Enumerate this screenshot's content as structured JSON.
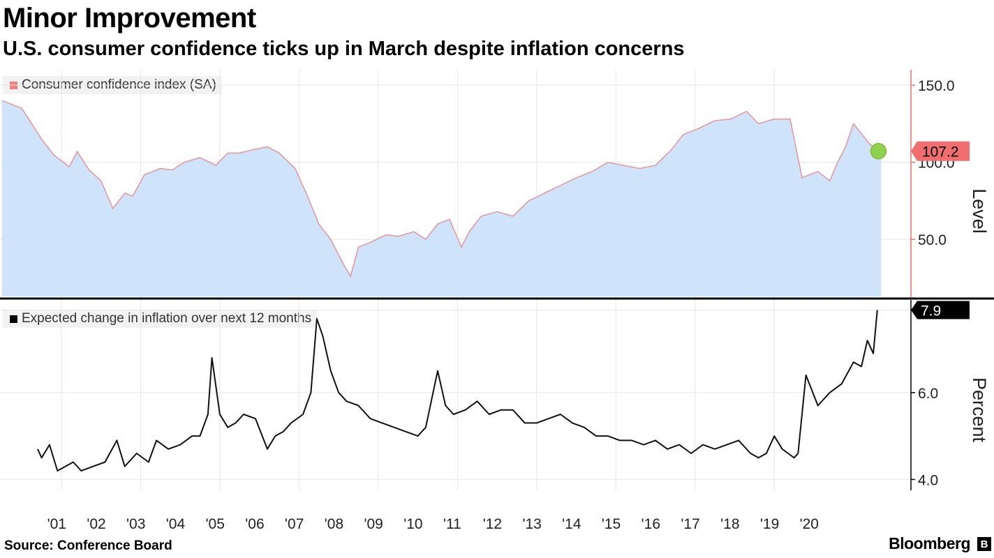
{
  "header": {
    "title": "Minor Improvement",
    "subtitle": "U.S. consumer confidence ticks up in March despite inflation concerns"
  },
  "footer": {
    "source": "Source: Conference Board",
    "brand": "Bloomberg",
    "brand_mark": "B"
  },
  "colors": {
    "area_fill": "#cfe4fb",
    "area_line": "#e39aa0",
    "latest_marker": "#8fd14f",
    "callout_top": "#f26d6d",
    "inflation_line": "#111111",
    "grid": "#e6e6e6",
    "divider": "#000000",
    "axis_accent": "#f26d6d"
  },
  "chart_data": [
    {
      "type": "area",
      "legend": "Consumer confidence index (SA)",
      "ylabel": "Level",
      "ylim": [
        13,
        160
      ],
      "yticks": [
        50.0,
        100.0,
        150.0
      ],
      "ytick_labels": [
        "50.0",
        "100.0",
        "150.0"
      ],
      "latest_value": 107.2,
      "latest_label": "107.2",
      "x": [
        2000.0,
        2000.5,
        2001.0,
        2001.3,
        2001.7,
        2001.9,
        2002.2,
        2002.5,
        2002.8,
        2003.1,
        2003.3,
        2003.6,
        2004.0,
        2004.3,
        2004.6,
        2005.0,
        2005.4,
        2005.7,
        2006.0,
        2006.3,
        2006.7,
        2007.0,
        2007.4,
        2007.7,
        2008.0,
        2008.3,
        2008.6,
        2008.8,
        2009.0,
        2009.3,
        2009.7,
        2010.0,
        2010.4,
        2010.7,
        2011.0,
        2011.3,
        2011.6,
        2011.8,
        2012.1,
        2012.5,
        2012.9,
        2013.3,
        2013.7,
        2014.1,
        2014.5,
        2014.9,
        2015.3,
        2015.7,
        2016.1,
        2016.5,
        2016.9,
        2017.2,
        2017.6,
        2018.0,
        2018.4,
        2018.8,
        2019.1,
        2019.5,
        2019.9,
        2020.2,
        2020.4,
        2020.6,
        2020.9,
        2021.1,
        2021.3,
        2021.5,
        2021.9,
        2022.2
      ],
      "values": [
        140,
        135,
        115,
        105,
        97,
        107,
        95,
        88,
        70,
        80,
        78,
        92,
        96,
        95,
        100,
        103,
        98,
        106,
        106,
        108,
        110,
        106,
        96,
        79,
        60,
        50,
        35,
        26,
        45,
        48,
        53,
        52,
        55,
        50,
        60,
        63,
        45,
        55,
        65,
        68,
        65,
        75,
        80,
        85,
        90,
        94,
        100,
        98,
        96,
        98,
        108,
        118,
        122,
        127,
        128,
        133,
        125,
        128,
        128,
        90,
        92,
        94,
        88,
        100,
        110,
        125,
        112,
        107.2
      ]
    },
    {
      "type": "line",
      "legend": "Expected change in inflation over next 12 months",
      "ylabel": "Percent",
      "ylim": [
        3.75,
        8.1
      ],
      "yticks": [
        4.0,
        6.0
      ],
      "ytick_labels": [
        "4.0",
        "6.0"
      ],
      "latest_value": 7.9,
      "latest_label": "7.9",
      "x": [
        2000.9,
        2001.0,
        2001.2,
        2001.4,
        2001.6,
        2001.8,
        2002.0,
        2002.3,
        2002.6,
        2002.9,
        2003.1,
        2003.4,
        2003.7,
        2003.9,
        2004.2,
        2004.5,
        2004.8,
        2005.0,
        2005.2,
        2005.3,
        2005.5,
        2005.7,
        2005.9,
        2006.1,
        2006.4,
        2006.7,
        2006.9,
        2007.1,
        2007.3,
        2007.6,
        2007.8,
        2007.95,
        2008.1,
        2008.3,
        2008.5,
        2008.7,
        2009.0,
        2009.3,
        2009.6,
        2009.9,
        2010.2,
        2010.5,
        2010.7,
        2011.0,
        2011.2,
        2011.4,
        2011.7,
        2012.0,
        2012.3,
        2012.6,
        2012.9,
        2013.2,
        2013.5,
        2013.8,
        2014.1,
        2014.4,
        2014.7,
        2015.0,
        2015.3,
        2015.6,
        2015.9,
        2016.2,
        2016.5,
        2016.8,
        2017.1,
        2017.4,
        2017.7,
        2018.0,
        2018.3,
        2018.6,
        2018.9,
        2019.1,
        2019.3,
        2019.5,
        2019.7,
        2019.85,
        2020.0,
        2020.1,
        2020.3,
        2020.6,
        2020.9,
        2021.2,
        2021.5,
        2021.7,
        2021.85,
        2022.0,
        2022.1
      ],
      "values": [
        4.7,
        4.5,
        4.8,
        4.2,
        4.3,
        4.4,
        4.2,
        4.3,
        4.4,
        4.9,
        4.3,
        4.6,
        4.4,
        4.9,
        4.7,
        4.8,
        5.0,
        5.0,
        5.5,
        6.8,
        5.5,
        5.2,
        5.3,
        5.5,
        5.4,
        4.7,
        5.0,
        5.1,
        5.3,
        5.5,
        6.0,
        7.7,
        7.3,
        6.5,
        6.0,
        5.8,
        5.7,
        5.4,
        5.3,
        5.2,
        5.1,
        5.0,
        5.2,
        6.5,
        5.7,
        5.5,
        5.6,
        5.8,
        5.5,
        5.6,
        5.6,
        5.3,
        5.3,
        5.4,
        5.5,
        5.3,
        5.2,
        5.0,
        5.0,
        4.9,
        4.9,
        4.8,
        4.9,
        4.7,
        4.8,
        4.6,
        4.8,
        4.7,
        4.8,
        4.9,
        4.6,
        4.5,
        4.6,
        5.0,
        4.7,
        4.6,
        4.5,
        4.6,
        6.4,
        5.7,
        6.0,
        6.2,
        6.7,
        6.6,
        7.2,
        6.9,
        7.9
      ]
    }
  ],
  "x_axis": {
    "ticks": [
      2001,
      2002,
      2003,
      2004,
      2005,
      2006,
      2007,
      2008,
      2009,
      2010,
      2011,
      2012,
      2013,
      2014,
      2015,
      2016,
      2017,
      2018,
      2019,
      2020
    ],
    "tick_labels": [
      "'01",
      "'02",
      "'03",
      "'04",
      "'05",
      "'06",
      "'07",
      "'08",
      "'09",
      "'10",
      "'11",
      "'12",
      "'13",
      "'14",
      "'15",
      "'16",
      "'17",
      "'18",
      "'19",
      "'20"
    ]
  }
}
